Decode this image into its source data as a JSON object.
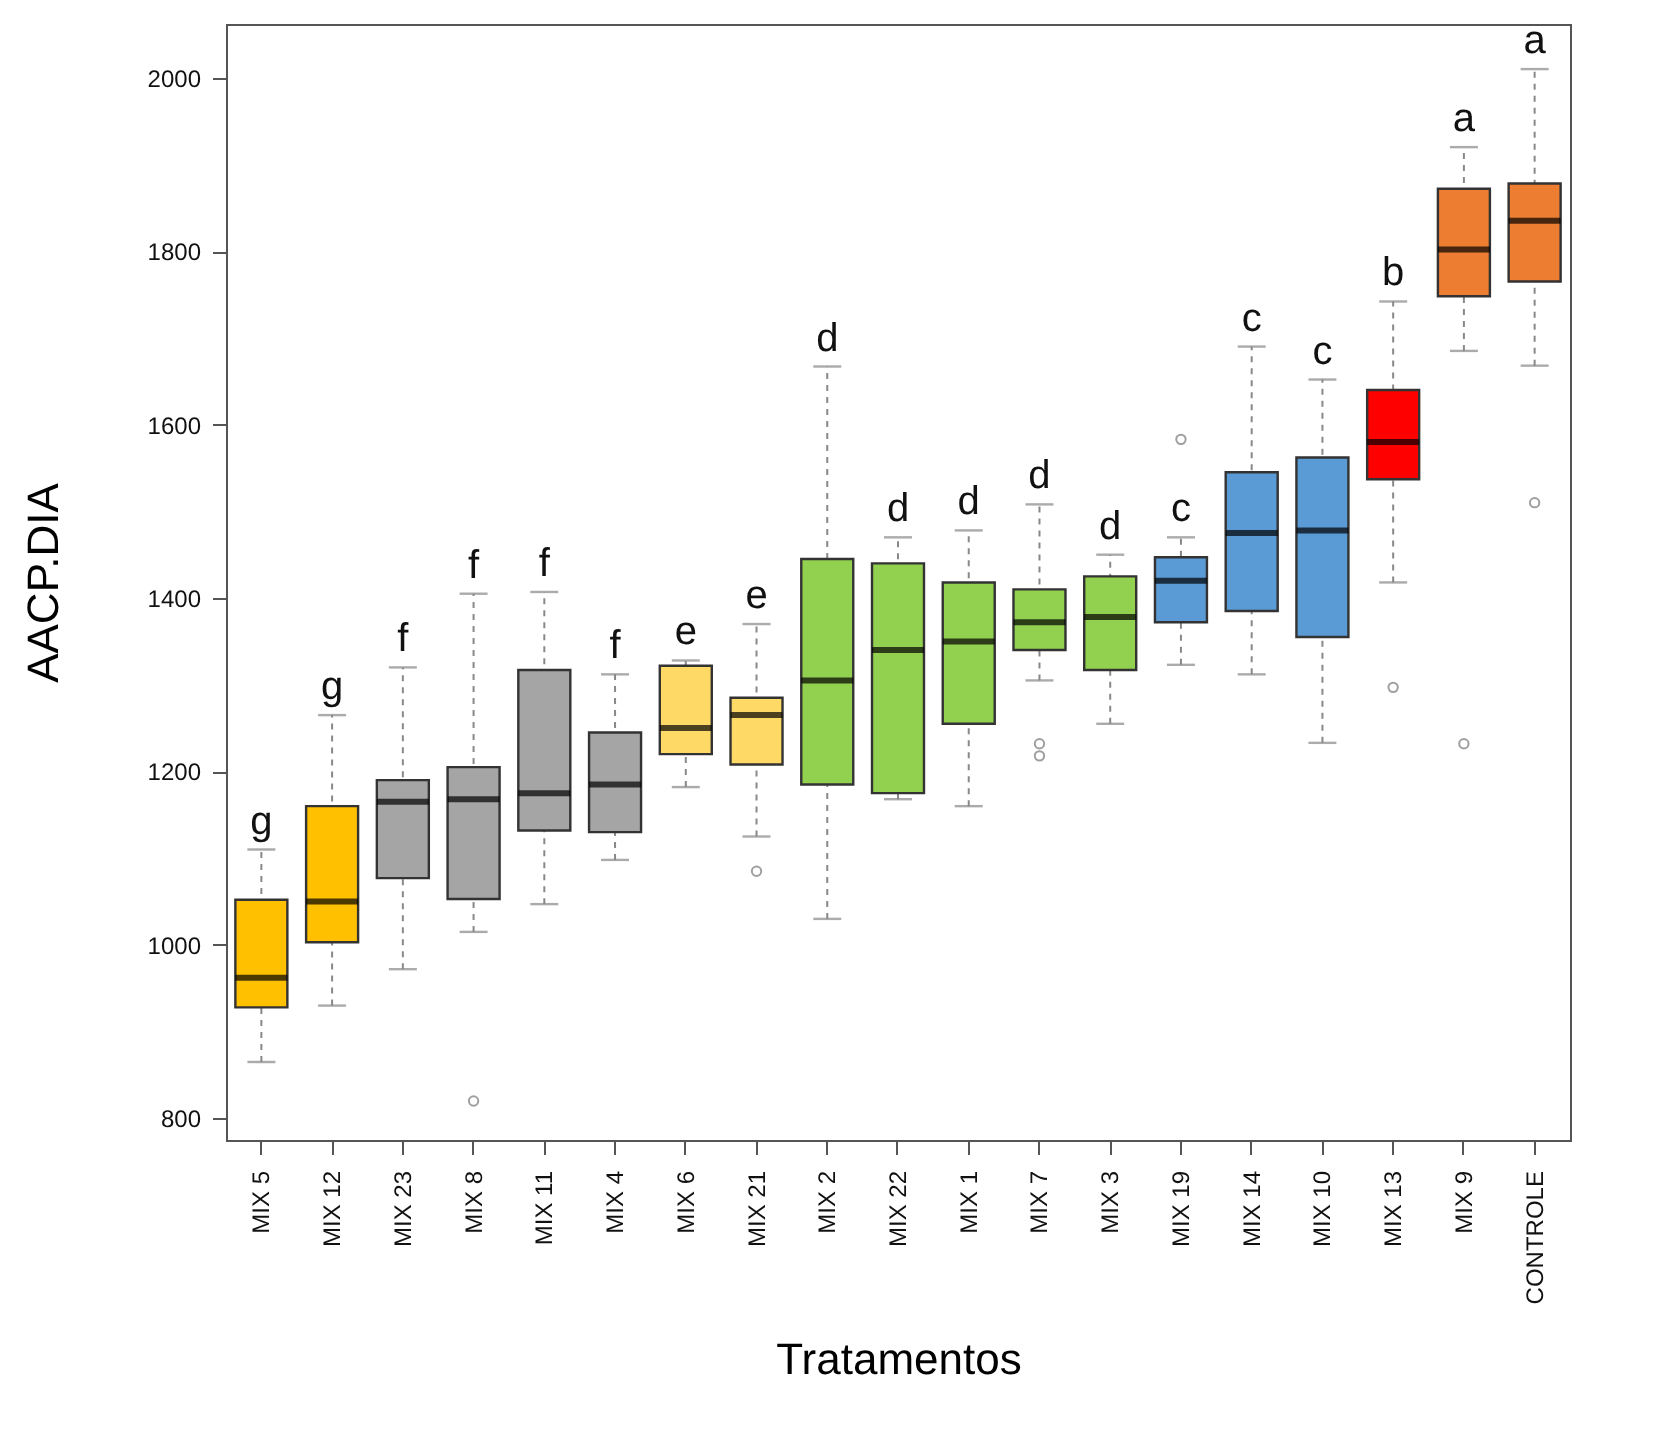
{
  "chart_data": {
    "type": "box",
    "xlabel": "Tratamentos",
    "ylabel": "AACP.DIA",
    "categories": [
      "MIX 5",
      "MIX 12",
      "MIX 23",
      "MIX 8",
      "MIX 11",
      "MIX 4",
      "MIX 6",
      "MIX 21",
      "MIX 2",
      "MIX 22",
      "MIX 1",
      "MIX 7",
      "MIX 3",
      "MIX 19",
      "MIX 14",
      "MIX 10",
      "MIX 13",
      "MIX 9",
      "CONTROLE"
    ],
    "colors": [
      "#ffc000",
      "#ffc000",
      "#a5a5a5",
      "#a5a5a5",
      "#a5a5a5",
      "#a5a5a5",
      "#ffd966",
      "#ffd966",
      "#92d050",
      "#92d050",
      "#92d050",
      "#92d050",
      "#92d050",
      "#5b9bd5",
      "#5b9bd5",
      "#5b9bd5",
      "#ff0000",
      "#ed7d31",
      "#ed7d31"
    ],
    "boxes": [
      {
        "low": 865,
        "q1": 928,
        "median": 962,
        "q3": 1052,
        "high": 1110
      },
      {
        "low": 930,
        "q1": 1003,
        "median": 1050,
        "q3": 1160,
        "high": 1265
      },
      {
        "low": 972,
        "q1": 1077,
        "median": 1165,
        "q3": 1190,
        "high": 1320
      },
      {
        "low": 1015,
        "q1": 1053,
        "median": 1168,
        "q3": 1205,
        "high": 1405,
        "outliers": [
          820
        ]
      },
      {
        "low": 1047,
        "q1": 1132,
        "median": 1175,
        "q3": 1317,
        "high": 1407
      },
      {
        "low": 1098,
        "q1": 1130,
        "median": 1185,
        "q3": 1245,
        "high": 1312
      },
      {
        "low": 1182,
        "q1": 1220,
        "median": 1250,
        "q3": 1322,
        "high": 1328
      },
      {
        "low": 1125,
        "q1": 1208,
        "median": 1265,
        "q3": 1285,
        "high": 1370,
        "outliers": [
          1085
        ]
      },
      {
        "low": 1030,
        "q1": 1185,
        "median": 1305,
        "q3": 1445,
        "high": 1667
      },
      {
        "low": 1168,
        "q1": 1175,
        "median": 1340,
        "q3": 1440,
        "high": 1470
      },
      {
        "low": 1160,
        "q1": 1255,
        "median": 1350,
        "q3": 1418,
        "high": 1478
      },
      {
        "low": 1305,
        "q1": 1340,
        "median": 1372,
        "q3": 1410,
        "high": 1508,
        "outliers": [
          1232,
          1218
        ]
      },
      {
        "low": 1255,
        "q1": 1317,
        "median": 1378,
        "q3": 1425,
        "high": 1450
      },
      {
        "low": 1323,
        "q1": 1372,
        "median": 1420,
        "q3": 1447,
        "high": 1470,
        "outliers": [
          1583
        ]
      },
      {
        "low": 1312,
        "q1": 1385,
        "median": 1475,
        "q3": 1545,
        "high": 1690
      },
      {
        "low": 1233,
        "q1": 1355,
        "median": 1478,
        "q3": 1562,
        "high": 1652
      },
      {
        "low": 1418,
        "q1": 1537,
        "median": 1580,
        "q3": 1640,
        "high": 1742,
        "outliers": [
          1297
        ]
      },
      {
        "low": 1685,
        "q1": 1748,
        "median": 1802,
        "q3": 1872,
        "high": 1920,
        "outliers": [
          1232
        ]
      },
      {
        "low": 1668,
        "q1": 1765,
        "median": 1835,
        "q3": 1878,
        "high": 2010,
        "outliers": [
          1510
        ]
      }
    ],
    "ylim": [
      775,
      2062
    ],
    "yticks": [
      800,
      1000,
      1200,
      1400,
      1600,
      1800,
      2000
    ],
    "annotations": [
      "g",
      "g",
      "f",
      "f",
      "f",
      "f",
      "e",
      "e",
      "d",
      "d",
      "d",
      "d",
      "d",
      "c",
      "c",
      "c",
      "b",
      "a",
      "a"
    ]
  }
}
